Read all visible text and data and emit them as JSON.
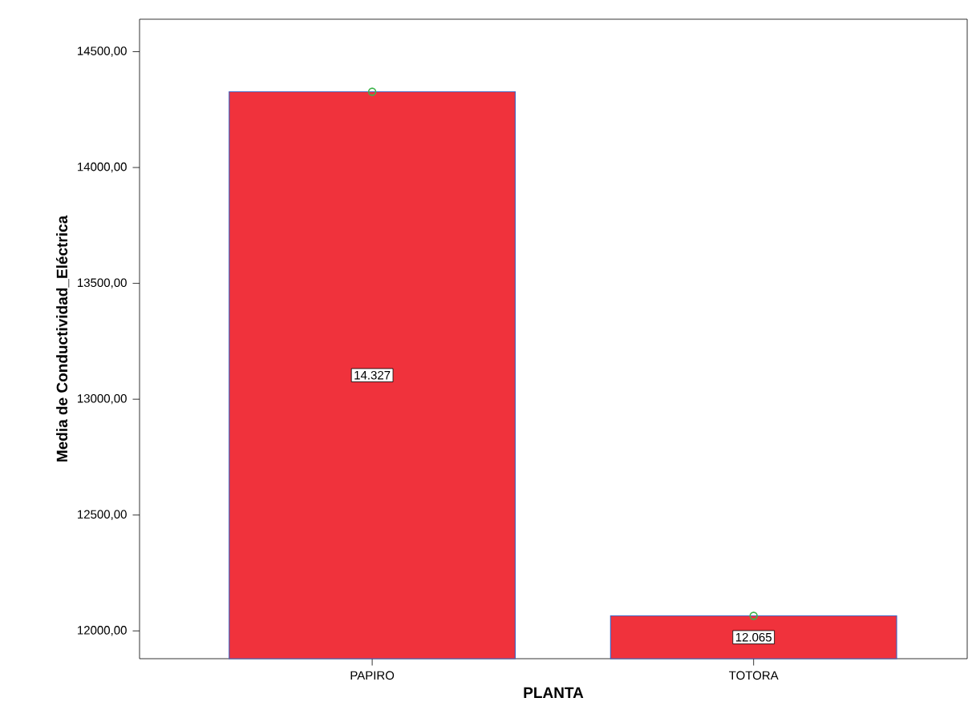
{
  "chart_data": {
    "type": "bar",
    "xlabel": "PLANTA",
    "ylabel": "Media de Conductividad_Eléctrica",
    "categories": [
      "PAPIRO",
      "TOTORA"
    ],
    "series": [
      {
        "color": "#f0323c",
        "values": [
          14327,
          12065
        ],
        "value_labels": [
          "14.327",
          "12.065"
        ]
      },
      {
        "type": "scatter",
        "color": "#3cb44b",
        "marker": "circle",
        "values": [
          14327,
          12065
        ]
      }
    ],
    "ylim": [
      11880,
      14640
    ],
    "yticks": [
      {
        "value": 12000,
        "label": "12000,00"
      },
      {
        "value": 12500,
        "label": "12500,00"
      },
      {
        "value": 13000,
        "label": "13000,00"
      },
      {
        "value": 13500,
        "label": "13500,00"
      },
      {
        "value": 14000,
        "label": "14000,00"
      },
      {
        "value": 14500,
        "label": "14500,00"
      }
    ],
    "grid": false
  }
}
